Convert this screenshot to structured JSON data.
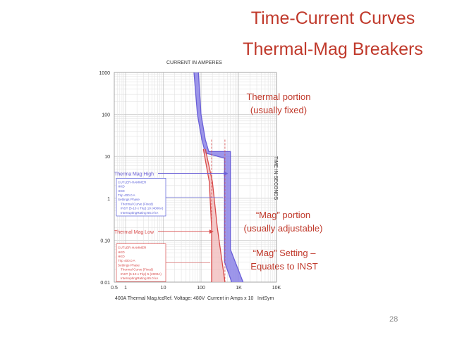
{
  "slide": {
    "title_line1": "Time-Current Curves",
    "title_line2": "Thermal-Mag Breakers",
    "callout_thermal_line1": "Thermal portion",
    "callout_thermal_line2": "(usually fixed)",
    "callout_mag_line1": "“Mag” portion",
    "callout_mag_line2": "(usually adjustable)",
    "callout_setting_line1": "“Mag” Setting –",
    "callout_setting_line2": "Equates to INST",
    "page_number": "28"
  },
  "colors": {
    "title": "#c0392b",
    "blue_band": "#6a5fd8",
    "red_band": "#e8a6a6",
    "red_line": "#d84a4a",
    "grid": "#d0d0d0"
  },
  "chart_data": {
    "type": "line",
    "xscale": "log",
    "yscale": "log",
    "xlabel_top": "CURRENT IN AMPERES",
    "ylabel_right": "TIME IN SECONDS",
    "xlim": [
      0.5,
      10000
    ],
    "ylim": [
      0.01,
      1000
    ],
    "x_ticks": [
      {
        "value": 0.5,
        "label": "0.5"
      },
      {
        "value": 1,
        "label": "1"
      },
      {
        "value": 10,
        "label": "10"
      },
      {
        "value": 100,
        "label": "100"
      },
      {
        "value": 1000,
        "label": "1K"
      },
      {
        "value": 10000,
        "label": "10K"
      }
    ],
    "y_ticks": [
      {
        "value": 1000,
        "label": "1000"
      },
      {
        "value": 100,
        "label": "100"
      },
      {
        "value": 10,
        "label": "10"
      },
      {
        "value": 1,
        "label": "1"
      },
      {
        "value": 0.1,
        "label": "0.10"
      },
      {
        "value": 0.01,
        "label": "0.01"
      }
    ],
    "footer": {
      "file": "400A Thermal Mag.tcc",
      "ref_voltage": "Ref. Voltage: 480V",
      "current_note": "Current in Amps x 10",
      "extra": "InitSym"
    },
    "series": [
      {
        "name": "Therma Mag High",
        "color": "#6a5fd8",
        "fill": "#8c84e6",
        "upper": [
          [
            85,
            1000
          ],
          [
            100,
            100
          ],
          [
            130,
            25
          ],
          [
            160,
            13
          ],
          [
            600,
            13
          ],
          [
            600,
            0.06
          ],
          [
            1300,
            0.01
          ]
        ],
        "lower": [
          [
            65,
            1000
          ],
          [
            80,
            100
          ],
          [
            105,
            25
          ],
          [
            130,
            12
          ],
          [
            420,
            9
          ],
          [
            420,
            0.03
          ],
          [
            650,
            0.01
          ]
        ]
      },
      {
        "name": "Thermal Mag Low",
        "color": "#d84a4a",
        "fill": "#f0b4b4",
        "upper": [
          [
            130,
            15
          ],
          [
            200,
            2.5
          ],
          [
            270,
            0.2
          ],
          [
            430,
            0.01
          ]
        ],
        "lower": [
          [
            115,
            15
          ],
          [
            165,
            2.5
          ],
          [
            190,
            0.2
          ],
          [
            190,
            0.01
          ]
        ]
      }
    ],
    "label_arrows": [
      {
        "label": "Therma Mag High",
        "y": 3.9,
        "x_end": 520
      },
      {
        "label": "Thermal Mag Low",
        "y": 0.16,
        "x_end": 215
      }
    ],
    "legend_boxes": [
      {
        "lines": [
          "CUTLER-HAMMER",
          "HKD",
          "HKD",
          "Trip 400.0 A",
          "Settings Phase",
          "Thermal Curve (Fixed)",
          "INST (5-10 x Trip) 10 (4000A)",
          "InterruptingRating 65.0 kA"
        ],
        "color": "#5a5fd8"
      },
      {
        "lines": [
          "CUTLER-HAMMER",
          "HKD",
          "HKD",
          "Trip 400.0 A",
          "Settings Phase",
          "Thermal Curve (Fixed)",
          "INST (5-10 x Trip) 5 (2000A)",
          "InterruptingRating 65.0 kA"
        ],
        "color": "#d84a4a"
      }
    ]
  }
}
